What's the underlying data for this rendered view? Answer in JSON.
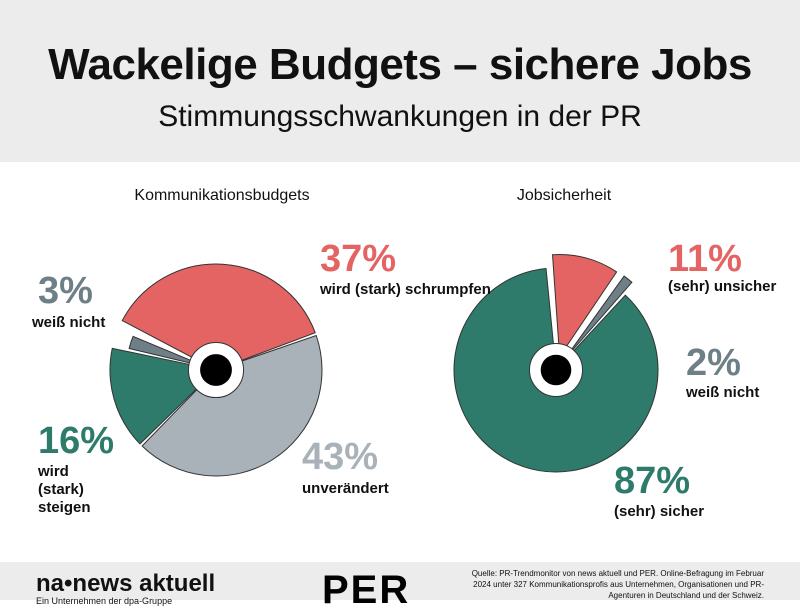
{
  "header": {
    "title": "Wackelige Budgets – sichere Jobs",
    "subtitle": "Stimmungsschwankungen in der PR"
  },
  "chart_data": [
    {
      "type": "pie",
      "title": "Kommunikationsbudgets",
      "slices": [
        {
          "pct": "37%",
          "label": "wird (stark) schrumpfen",
          "value": 37,
          "color": "#e46464"
        },
        {
          "pct": "43%",
          "label": "unverändert",
          "value": 43,
          "color": "#a8b2b8"
        },
        {
          "pct": "16%",
          "label": "wird (stark) steigen",
          "value": 16,
          "color": "#2e7b6b"
        },
        {
          "pct": "3%",
          "label": "weiß nicht",
          "value": 3,
          "color": "#6e7f88",
          "exploded": true
        }
      ]
    },
    {
      "type": "pie",
      "title": "Jobsicherheit",
      "slices": [
        {
          "pct": "87%",
          "label": "(sehr) sicher",
          "value": 87,
          "color": "#2e7b6b"
        },
        {
          "pct": "11%",
          "label": "(sehr) unsicher",
          "value": 11,
          "color": "#e46464",
          "exploded": true
        },
        {
          "pct": "2%",
          "label": "weiß nicht",
          "value": 2,
          "color": "#6e7f88",
          "exploded": true
        }
      ]
    }
  ],
  "footer": {
    "logo": "na•news aktuell",
    "tagline": "Ein Unternehmen der dpa-Gruppe",
    "per_logo": "PER",
    "source": "Quelle: PR-Trendmonitor von news aktuell und PER. Online-Befragung im Februar 2024 unter 327 Kommunikationsprofis aus Unternehmen, Organisationen und PR-Agenturen in Deutschland und der Schweiz."
  }
}
